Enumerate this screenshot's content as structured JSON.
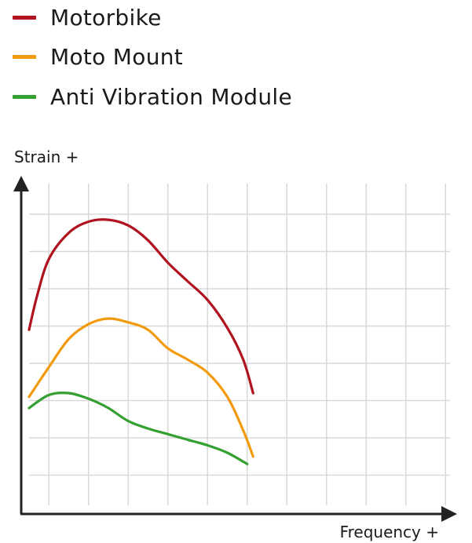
{
  "chart_data": {
    "type": "line",
    "xlabel": "Frequency +",
    "ylabel": "Strain +",
    "ticks_labeled": false,
    "grid": true,
    "legend_position": "top-left",
    "series": [
      {
        "name": "Motorbike",
        "color": "#b0131e",
        "values": [
          [
            0,
            3.9
          ],
          [
            0.2,
            4.8
          ],
          [
            0.5,
            5.8
          ],
          [
            1,
            6.5
          ],
          [
            1.5,
            6.8
          ],
          [
            2,
            6.85
          ],
          [
            2.5,
            6.7
          ],
          [
            3,
            6.3
          ],
          [
            3.5,
            5.7
          ],
          [
            4,
            5.2
          ],
          [
            4.5,
            4.7
          ],
          [
            5,
            3.95
          ],
          [
            5.4,
            3.1
          ],
          [
            5.65,
            2.2
          ]
        ]
      },
      {
        "name": "Moto Mount",
        "color": "#f29a0e",
        "values": [
          [
            0,
            2.1
          ],
          [
            0.5,
            2.9
          ],
          [
            1,
            3.65
          ],
          [
            1.5,
            4.05
          ],
          [
            2,
            4.2
          ],
          [
            2.5,
            4.1
          ],
          [
            3,
            3.9
          ],
          [
            3.5,
            3.4
          ],
          [
            4,
            3.1
          ],
          [
            4.5,
            2.75
          ],
          [
            5,
            2.1
          ],
          [
            5.4,
            1.2
          ],
          [
            5.65,
            0.5
          ]
        ]
      },
      {
        "name": "Anti Vibration Module",
        "color": "#35a032",
        "values": [
          [
            0,
            1.8
          ],
          [
            0.5,
            2.15
          ],
          [
            1,
            2.2
          ],
          [
            1.5,
            2.05
          ],
          [
            2,
            1.8
          ],
          [
            2.5,
            1.45
          ],
          [
            3,
            1.25
          ],
          [
            3.5,
            1.1
          ],
          [
            4,
            0.95
          ],
          [
            4.5,
            0.8
          ],
          [
            5,
            0.6
          ],
          [
            5.5,
            0.3
          ]
        ]
      }
    ]
  }
}
